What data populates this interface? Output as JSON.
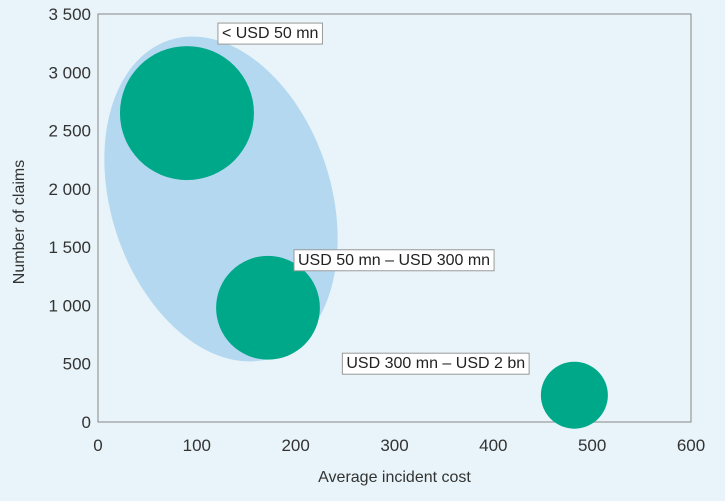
{
  "chart_data": {
    "type": "scatter",
    "subtype": "bubble",
    "xlabel": "Average incident cost",
    "ylabel": "Number of claims",
    "xlim": [
      0,
      600
    ],
    "ylim": [
      0,
      3500
    ],
    "x_ticks": [
      0,
      100,
      200,
      300,
      400,
      500,
      600
    ],
    "x_tick_labels": [
      "0",
      "100",
      "200",
      "300",
      "400",
      "500",
      "600"
    ],
    "y_ticks": [
      0,
      500,
      1000,
      1500,
      2000,
      2500,
      3000,
      3500
    ],
    "y_tick_labels": [
      "0",
      "500",
      "1 000",
      "1 500",
      "2 000",
      "2 500",
      "3 000",
      "3 500"
    ],
    "grid": false,
    "points": [
      {
        "label": "< USD 50 mn",
        "x": 90,
        "y": 2650,
        "relative_size": 1.0
      },
      {
        "label": "USD 50 mn – USD 300 mn",
        "x": 172,
        "y": 980,
        "relative_size": 0.6
      },
      {
        "label": "USD 300 mn – USD 2 bn",
        "x": 482,
        "y": 230,
        "relative_size": 0.25
      }
    ],
    "highlight_region": {
      "shape": "ellipse",
      "color": "#b3d8f0"
    },
    "colors": {
      "bubble": "#00a88a",
      "highlight": "#b3d8f0",
      "background": "#e8f4f9",
      "frame": "#888888"
    }
  }
}
